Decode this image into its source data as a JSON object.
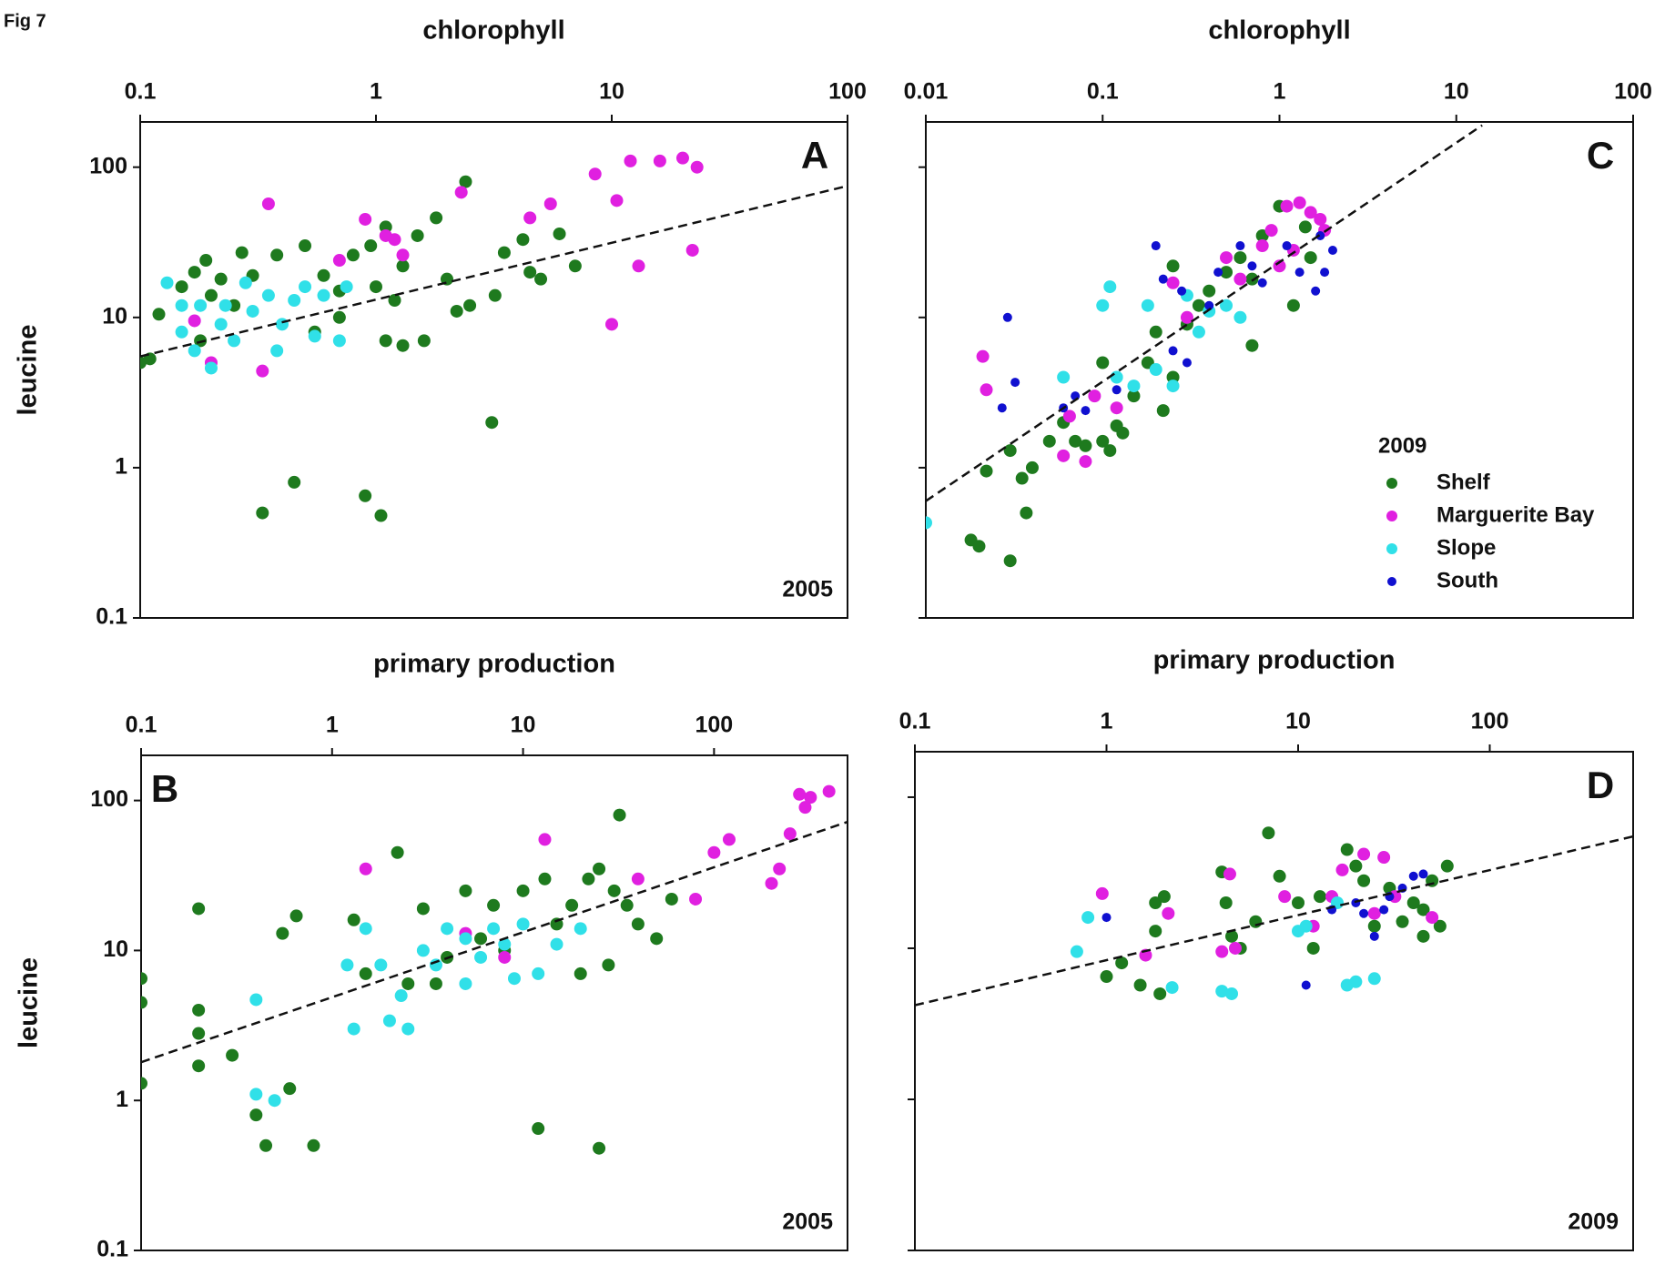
{
  "figure_label": "Fig 7",
  "chart_data": [
    {
      "type": "scatter",
      "panel": "A",
      "label_corner": "top-right",
      "xlabel": "chlorophyll",
      "ylabel": "leucine",
      "year": "2005",
      "xscale": "log",
      "yscale": "log",
      "xlim": [
        0.1,
        100
      ],
      "ylim": [
        0.1,
        200
      ],
      "xticks": [
        0.1,
        1,
        10,
        100
      ],
      "yticks": [
        0.1,
        1,
        10,
        100
      ],
      "ytick_labels": true,
      "trend": {
        "x": [
          0.1,
          100
        ],
        "y": [
          5.5,
          75
        ]
      },
      "series": [
        {
          "color": "#1e7a1e",
          "x": [
            0.1,
            0.11,
            0.12,
            0.15,
            0.17,
            0.19,
            0.2,
            0.22,
            0.25,
            0.27,
            0.3,
            0.33,
            0.38,
            0.45,
            0.5,
            0.55,
            0.6,
            0.7,
            0.8,
            0.9,
            0.95,
            1,
            1.05,
            1.1,
            1.2,
            1.3,
            1.5,
            1.6,
            1.8,
            2,
            2.2,
            2.5,
            2.4,
            3.5,
            3.1,
            4.2,
            4.5,
            5,
            6,
            7,
            0.18,
            1.3,
            1.1,
            0.7,
            3.2
          ],
          "values": [
            5,
            5.3,
            10.5,
            16,
            20,
            24,
            14,
            18,
            12,
            27,
            19,
            0.5,
            26,
            0.8,
            30,
            8,
            19,
            15,
            26,
            0.65,
            30,
            16,
            0.48,
            40,
            13,
            6.5,
            35,
            7,
            46,
            18,
            11,
            12,
            80,
            27,
            2,
            33,
            20,
            18,
            36,
            22,
            7,
            22,
            7,
            10,
            14
          ]
        },
        {
          "color": "#e020e0",
          "x": [
            0.35,
            0.33,
            0.2,
            0.17,
            0.9,
            1.1,
            1.2,
            1.3,
            2.3,
            4.5,
            5.5,
            8.5,
            10.5,
            12,
            13,
            16,
            20,
            23,
            22,
            10,
            0.7
          ],
          "values": [
            57,
            4.4,
            5,
            9.5,
            45,
            35,
            33,
            26,
            68,
            46,
            57,
            90,
            60,
            110,
            22,
            110,
            115,
            100,
            28,
            9,
            24
          ]
        },
        {
          "color": "#30e0e8",
          "x": [
            0.13,
            0.15,
            0.17,
            0.18,
            0.2,
            0.22,
            0.25,
            0.3,
            0.35,
            0.4,
            0.45,
            0.5,
            0.55,
            0.6,
            0.7,
            0.75,
            0.15,
            0.28,
            0.23,
            0.38
          ],
          "values": [
            17,
            8,
            6,
            12,
            4.6,
            9,
            7,
            11,
            14,
            9,
            13,
            16,
            7.5,
            14,
            7,
            16,
            12,
            17,
            12,
            6
          ]
        }
      ]
    },
    {
      "type": "scatter",
      "panel": "C",
      "label_corner": "top-right",
      "xlabel": "chlorophyll",
      "legend_title": "2009",
      "legend": "bottom-right",
      "xscale": "log",
      "yscale": "log",
      "xlim": [
        0.01,
        100
      ],
      "ylim": [
        0.1,
        200
      ],
      "xticks": [
        0.01,
        0.1,
        1,
        10,
        100
      ],
      "yticks": [
        0.1,
        1,
        10,
        100
      ],
      "ytick_labels": false,
      "trend": {
        "x": [
          0.01,
          14
        ],
        "y": [
          0.6,
          190
        ]
      },
      "series": [
        {
          "name": "Shelf",
          "color": "#1e7a1e",
          "x": [
            0.018,
            0.02,
            0.022,
            0.03,
            0.03,
            0.035,
            0.037,
            0.04,
            0.05,
            0.06,
            0.07,
            0.08,
            0.1,
            0.11,
            0.12,
            0.13,
            0.15,
            0.18,
            0.2,
            0.22,
            0.25,
            0.3,
            0.35,
            0.4,
            0.5,
            0.6,
            0.7,
            0.8,
            1,
            1.2,
            1.4,
            1.5,
            0.25,
            0.1,
            0.7
          ],
          "values": [
            0.33,
            0.3,
            0.95,
            0.24,
            1.3,
            0.85,
            0.5,
            1,
            1.5,
            2,
            1.5,
            1.4,
            1.5,
            1.3,
            1.9,
            1.7,
            3,
            5,
            8,
            2.4,
            4,
            9,
            12,
            15,
            20,
            25,
            6.5,
            35,
            55,
            12,
            40,
            25,
            22,
            5,
            18
          ]
        },
        {
          "name": "Marguerite Bay",
          "color": "#e020e0",
          "x": [
            0.021,
            0.022,
            0.06,
            0.08,
            0.09,
            0.12,
            0.25,
            0.3,
            0.5,
            0.6,
            0.8,
            1,
            1.1,
            1.3,
            1.5,
            1.7,
            1.8,
            1.2,
            0.9,
            0.065
          ],
          "values": [
            5.5,
            3.3,
            1.2,
            1.1,
            3,
            2.5,
            17,
            10,
            25,
            18,
            30,
            22,
            55,
            58,
            50,
            45,
            38,
            28,
            38,
            2.2
          ]
        },
        {
          "name": "Slope",
          "color": "#30e0e8",
          "x": [
            0.01,
            0.06,
            0.1,
            0.11,
            0.15,
            0.18,
            0.2,
            0.25,
            0.3,
            0.35,
            0.4,
            0.5,
            0.6,
            0.12
          ],
          "values": [
            0.43,
            4,
            12,
            16,
            3.5,
            12,
            4.5,
            3.5,
            14,
            8,
            11,
            12,
            10,
            4
          ]
        },
        {
          "name": "South",
          "color": "#1010d0",
          "x": [
            0.029,
            0.032,
            0.027,
            0.06,
            0.07,
            0.08,
            0.12,
            0.2,
            0.22,
            0.28,
            0.3,
            0.4,
            0.45,
            0.6,
            0.7,
            0.8,
            1.1,
            1.3,
            1.6,
            1.8,
            2,
            1.7,
            0.25
          ],
          "values": [
            10,
            3.7,
            2.5,
            2.5,
            3,
            2.4,
            3.3,
            30,
            18,
            15,
            5,
            12,
            20,
            30,
            22,
            17,
            30,
            20,
            15,
            20,
            28,
            35,
            6
          ]
        }
      ]
    },
    {
      "type": "scatter",
      "panel": "B",
      "label_corner": "top-left",
      "xlabel": "primary production",
      "ylabel": "leucine",
      "year": "2005",
      "xscale": "log",
      "yscale": "log",
      "xlim": [
        0.1,
        500
      ],
      "ylim": [
        0.1,
        200
      ],
      "xticks": [
        0.1,
        1,
        10,
        100
      ],
      "yticks": [
        0.1,
        1,
        10,
        100
      ],
      "ytick_labels": true,
      "trend": {
        "x": [
          0.1,
          500
        ],
        "y": [
          1.8,
          72
        ]
      },
      "series": [
        {
          "color": "#1e7a1e",
          "x": [
            0.1,
            0.1,
            0.1,
            0.2,
            0.2,
            0.2,
            0.2,
            0.3,
            0.4,
            0.45,
            0.55,
            0.6,
            0.65,
            0.8,
            1.3,
            1.5,
            2.2,
            2.5,
            3,
            3.5,
            4,
            5,
            6,
            7,
            8,
            10,
            12,
            13,
            15,
            18,
            20,
            22,
            25,
            25,
            28,
            30,
            32,
            35,
            40,
            50,
            60
          ],
          "values": [
            6.5,
            4.5,
            1.3,
            19,
            4,
            2.8,
            1.7,
            2,
            0.8,
            0.5,
            13,
            1.2,
            17,
            0.5,
            16,
            7,
            45,
            6,
            19,
            6,
            9,
            25,
            12,
            20,
            10,
            25,
            0.65,
            30,
            15,
            20,
            7,
            30,
            0.48,
            35,
            8,
            25,
            80,
            20,
            15,
            12,
            22
          ]
        },
        {
          "color": "#e020e0",
          "x": [
            1.5,
            5,
            8,
            13,
            40,
            80,
            100,
            120,
            200,
            220,
            250,
            280,
            300,
            320,
            400
          ],
          "values": [
            35,
            13,
            9,
            55,
            30,
            22,
            45,
            55,
            28,
            35,
            60,
            110,
            90,
            105,
            115
          ]
        },
        {
          "color": "#30e0e8",
          "x": [
            0.4,
            0.4,
            0.5,
            1.2,
            1.3,
            1.5,
            1.8,
            2,
            2.3,
            2.5,
            3,
            3.5,
            4,
            5,
            5,
            6,
            7,
            8,
            9,
            10,
            12,
            15,
            20
          ],
          "values": [
            4.7,
            1.1,
            1,
            8,
            3,
            14,
            8,
            3.4,
            5,
            3,
            10,
            8,
            14,
            12,
            6,
            9,
            14,
            11,
            6.5,
            15,
            7,
            11,
            14
          ]
        }
      ]
    },
    {
      "type": "scatter",
      "panel": "D",
      "label_corner": "top-right",
      "xlabel": "primary production",
      "year": "2009",
      "xscale": "log",
      "yscale": "log",
      "xlim": [
        0.1,
        560
      ],
      "ylim": [
        0.1,
        200
      ],
      "xticks": [
        0.1,
        1,
        10,
        100
      ],
      "yticks": [
        0.1,
        1,
        10,
        100
      ],
      "ytick_labels": false,
      "trend": {
        "x": [
          0.1,
          560
        ],
        "y": [
          4.2,
          55
        ]
      },
      "series": [
        {
          "color": "#1e7a1e",
          "x": [
            1,
            1.2,
            1.5,
            1.8,
            1.8,
            2,
            1.9,
            4,
            4.2,
            4.5,
            5,
            6,
            7,
            8,
            10,
            12,
            13,
            18,
            20,
            22,
            25,
            30,
            35,
            40,
            45,
            50,
            55,
            60,
            45
          ],
          "values": [
            6.5,
            8,
            5.7,
            13,
            20,
            22,
            5,
            32,
            20,
            12,
            10,
            15,
            58,
            30,
            20,
            10,
            22,
            45,
            35,
            28,
            14,
            25,
            15,
            20,
            12,
            28,
            14,
            35,
            18
          ]
        },
        {
          "color": "#e020e0",
          "x": [
            0.95,
            1.6,
            2.1,
            4,
            4.4,
            4.7,
            8.5,
            12,
            17,
            22,
            28,
            32,
            25,
            50,
            15
          ],
          "values": [
            23,
            9,
            17,
            9.5,
            31,
            10,
            22,
            14,
            33,
            42,
            40,
            22,
            17,
            16,
            22
          ]
        },
        {
          "color": "#30e0e8",
          "x": [
            0.7,
            0.8,
            2.2,
            4,
            4.5,
            10,
            11,
            18,
            20,
            25,
            16
          ],
          "values": [
            9.5,
            16,
            5.5,
            5.2,
            5,
            13,
            14,
            5.7,
            6,
            6.3,
            20
          ]
        },
        {
          "color": "#1010d0",
          "x": [
            1,
            11,
            15,
            20,
            22,
            25,
            30,
            35,
            40,
            45,
            28
          ],
          "values": [
            16,
            5.7,
            18,
            20,
            17,
            12,
            22,
            25,
            30,
            31,
            18
          ]
        }
      ]
    }
  ]
}
